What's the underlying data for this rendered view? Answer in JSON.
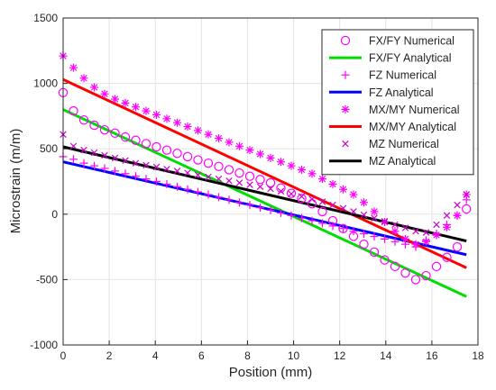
{
  "chart_data": {
    "type": "line",
    "xlabel": "Position (mm)",
    "ylabel": "Microstrain (m/m)",
    "xlim": [
      0,
      18
    ],
    "ylim": [
      -1000,
      1500
    ],
    "xticks": [
      0,
      2,
      4,
      6,
      8,
      10,
      12,
      14,
      16,
      18
    ],
    "yticks": [
      -1000,
      -500,
      0,
      500,
      1000,
      1500
    ],
    "grid": true,
    "legend_position": "top-right",
    "series": [
      {
        "name": "FX/FY Numerical",
        "style": "marker",
        "marker": "circle",
        "color": "#ff00ff",
        "x": [
          0.0,
          0.45,
          0.9,
          1.35,
          1.8,
          2.25,
          2.7,
          3.15,
          3.6,
          4.05,
          4.5,
          4.95,
          5.4,
          5.85,
          6.3,
          6.75,
          7.2,
          7.65,
          8.1,
          8.55,
          9.0,
          9.45,
          9.9,
          10.35,
          10.8,
          11.25,
          11.7,
          12.15,
          12.6,
          13.05,
          13.5,
          13.95,
          14.4,
          14.85,
          15.3,
          15.75,
          16.2,
          16.65,
          17.1,
          17.5
        ],
        "y": [
          930,
          790,
          720,
          680,
          645,
          620,
          590,
          565,
          540,
          515,
          490,
          465,
          440,
          415,
          390,
          365,
          340,
          315,
          290,
          265,
          240,
          200,
          160,
          120,
          80,
          20,
          -50,
          -110,
          -170,
          -230,
          -290,
          -350,
          -400,
          -450,
          -500,
          -470,
          -400,
          -330,
          -250,
          40
        ]
      },
      {
        "name": "FX/FY Analytical",
        "style": "line",
        "color": "#00dd00",
        "x": [
          0,
          17.5
        ],
        "y": [
          800,
          -630
        ]
      },
      {
        "name": "FZ Numerical",
        "style": "marker",
        "marker": "plus",
        "color": "#ff00ff",
        "x": [
          0.0,
          0.45,
          0.9,
          1.35,
          1.8,
          2.25,
          2.7,
          3.15,
          3.6,
          4.05,
          4.5,
          4.95,
          5.4,
          5.85,
          6.3,
          6.75,
          7.2,
          7.65,
          8.1,
          8.55,
          9.0,
          9.45,
          9.9,
          10.35,
          10.8,
          11.25,
          11.7,
          12.15,
          12.6,
          13.05,
          13.5,
          13.95,
          14.4,
          14.85,
          15.3,
          15.75,
          16.2,
          16.65,
          17.1,
          17.5
        ],
        "y": [
          440,
          420,
          390,
          370,
          350,
          330,
          310,
          290,
          270,
          250,
          230,
          210,
          190,
          170,
          150,
          130,
          110,
          90,
          70,
          50,
          30,
          10,
          -10,
          -30,
          -50,
          -70,
          -90,
          -110,
          -130,
          -150,
          -170,
          -190,
          -210,
          -230,
          -250,
          -200,
          -150,
          -80,
          -10,
          110
        ]
      },
      {
        "name": "FZ Analytical",
        "style": "line",
        "color": "#0000ff",
        "x": [
          0,
          17.5
        ],
        "y": [
          400,
          -310
        ]
      },
      {
        "name": "MX/MY Numerical",
        "style": "marker",
        "marker": "asterisk",
        "color": "#ff00ff",
        "x": [
          0.0,
          0.45,
          0.9,
          1.35,
          1.8,
          2.25,
          2.7,
          3.15,
          3.6,
          4.05,
          4.5,
          4.95,
          5.4,
          5.85,
          6.3,
          6.75,
          7.2,
          7.65,
          8.1,
          8.55,
          9.0,
          9.45,
          9.9,
          10.35,
          10.8,
          11.25,
          11.7,
          12.15,
          12.6,
          13.05,
          13.5,
          13.95,
          14.4,
          14.85,
          15.3,
          15.75,
          16.2,
          16.65,
          17.1,
          17.5
        ],
        "y": [
          1210,
          1120,
          1040,
          970,
          920,
          880,
          850,
          820,
          790,
          760,
          730,
          700,
          670,
          640,
          610,
          580,
          550,
          520,
          490,
          460,
          430,
          400,
          370,
          340,
          310,
          270,
          230,
          190,
          150,
          90,
          20,
          -60,
          -130,
          -190,
          -230,
          -210,
          -160,
          -100,
          -10,
          150
        ]
      },
      {
        "name": "MX/MY Analytical",
        "style": "line",
        "color": "#ff0000",
        "x": [
          0,
          17.5
        ],
        "y": [
          1030,
          -410
        ]
      },
      {
        "name": "MZ Numerical",
        "style": "marker",
        "marker": "cross",
        "color": "#cc00cc",
        "x": [
          0.0,
          0.45,
          0.9,
          1.35,
          1.8,
          2.25,
          2.7,
          3.15,
          3.6,
          4.05,
          4.5,
          4.95,
          5.4,
          5.85,
          6.3,
          6.75,
          7.2,
          7.65,
          8.1,
          8.55,
          9.0,
          9.45,
          9.9,
          10.35,
          10.8,
          11.25,
          11.7,
          12.15,
          12.6,
          13.05,
          13.5,
          13.95,
          14.4,
          14.85,
          15.3,
          15.75,
          16.2,
          16.65,
          17.1,
          17.5
        ],
        "y": [
          610,
          520,
          490,
          470,
          450,
          430,
          410,
          390,
          375,
          360,
          345,
          330,
          315,
          300,
          285,
          270,
          255,
          240,
          225,
          210,
          195,
          175,
          155,
          135,
          115,
          95,
          70,
          45,
          20,
          -5,
          -30,
          -55,
          -80,
          -105,
          -130,
          -140,
          -80,
          -10,
          70,
          150
        ]
      },
      {
        "name": "MZ Analytical",
        "style": "line",
        "color": "#000000",
        "x": [
          0,
          17.5
        ],
        "y": [
          515,
          -205
        ]
      }
    ]
  }
}
